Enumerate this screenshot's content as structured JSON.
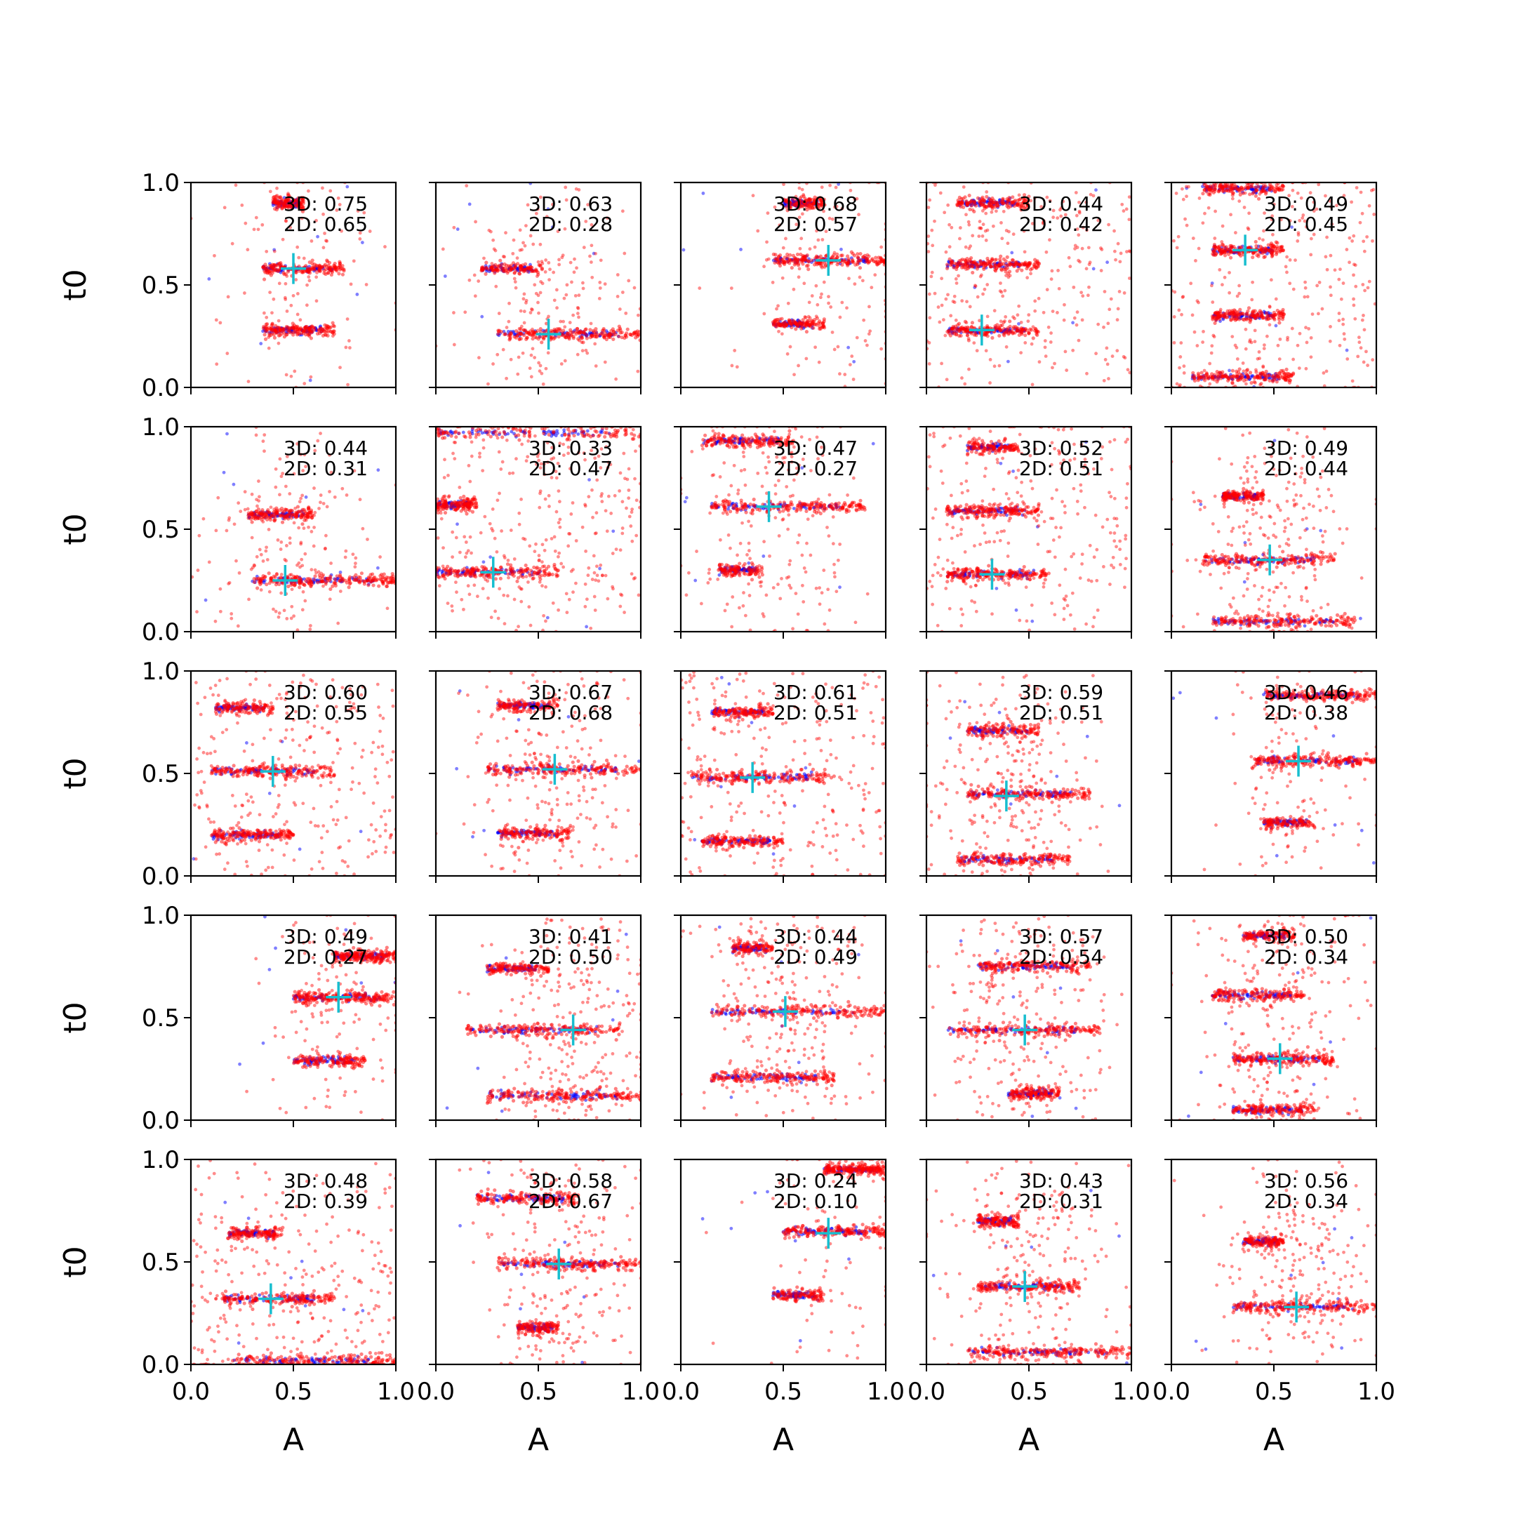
{
  "chart_data": {
    "type": "scatter",
    "rows": 5,
    "cols": 5,
    "xlabel": "A",
    "ylabel": "t0",
    "xlim": [
      0.0,
      1.0
    ],
    "ylim": [
      0.0,
      1.0
    ],
    "x_ticks": [
      "0.0",
      "0.5",
      "1.0"
    ],
    "y_ticks": [
      "0.0",
      "0.5",
      "1.0"
    ],
    "grid": false,
    "colors": {
      "samples_2d": "#ff0000",
      "samples_3d": "#0000ff",
      "truth": "#17becf",
      "frame": "#000000"
    },
    "panels": [
      {
        "row": 0,
        "col": 0,
        "label_3d": "3D: 0.75",
        "label_2d": "2D: 0.65",
        "truth": [
          0.5,
          0.58
        ],
        "bands": [
          {
            "t": 0.58,
            "a": [
              0.35,
              0.75
            ],
            "amp": 0.3
          },
          {
            "t": 0.28,
            "a": [
              0.35,
              0.7
            ],
            "amp": 0.3
          },
          {
            "t": 0.9,
            "a": [
              0.4,
              0.55
            ],
            "amp": 0.12
          }
        ],
        "scatter": 0.35
      },
      {
        "row": 0,
        "col": 1,
        "label_3d": "3D: 0.63",
        "label_2d": "2D: 0.28",
        "truth": [
          0.55,
          0.26
        ],
        "bands": [
          {
            "t": 0.26,
            "a": [
              0.3,
              1.0
            ],
            "amp": 0.45
          },
          {
            "t": 0.58,
            "a": [
              0.22,
              0.52
            ],
            "amp": 0.05
          }
        ],
        "scatter": 0.6
      },
      {
        "row": 0,
        "col": 2,
        "label_3d": "3D: 0.68",
        "label_2d": "2D: 0.57",
        "truth": [
          0.72,
          0.62
        ],
        "bands": [
          {
            "t": 0.62,
            "a": [
              0.45,
              1.0
            ],
            "amp": 0.45
          },
          {
            "t": 0.31,
            "a": [
              0.45,
              0.7
            ],
            "amp": 0.1
          },
          {
            "t": 0.9,
            "a": [
              0.5,
              0.7
            ],
            "amp": 0.08
          }
        ],
        "scatter": 0.45
      },
      {
        "row": 0,
        "col": 3,
        "label_3d": "3D: 0.44",
        "label_2d": "2D: 0.42",
        "truth": [
          0.27,
          0.28
        ],
        "bands": [
          {
            "t": 0.28,
            "a": [
              0.1,
              0.55
            ],
            "amp": 0.3
          },
          {
            "t": 0.6,
            "a": [
              0.1,
              0.55
            ],
            "amp": 0.3
          },
          {
            "t": 0.9,
            "a": [
              0.15,
              0.5
            ],
            "amp": 0.2
          }
        ],
        "scatter": 0.9
      },
      {
        "row": 0,
        "col": 4,
        "label_3d": "3D: 0.49",
        "label_2d": "2D: 0.45",
        "truth": [
          0.36,
          0.67
        ],
        "bands": [
          {
            "t": 0.67,
            "a": [
              0.2,
              0.55
            ],
            "amp": 0.25
          },
          {
            "t": 0.35,
            "a": [
              0.2,
              0.55
            ],
            "amp": 0.25
          },
          {
            "t": 0.05,
            "a": [
              0.1,
              0.6
            ],
            "amp": 0.3
          },
          {
            "t": 0.97,
            "a": [
              0.15,
              0.55
            ],
            "amp": 0.2
          }
        ],
        "scatter": 0.9
      },
      {
        "row": 1,
        "col": 0,
        "label_3d": "3D: 0.44",
        "label_2d": "2D: 0.31",
        "truth": [
          0.46,
          0.25
        ],
        "bands": [
          {
            "t": 0.25,
            "a": [
              0.3,
              1.0
            ],
            "amp": 0.45
          },
          {
            "t": 0.57,
            "a": [
              0.28,
              0.6
            ],
            "amp": 0.25
          }
        ],
        "scatter": 0.55
      },
      {
        "row": 1,
        "col": 1,
        "label_3d": "3D: 0.33",
        "label_2d": "2D: 0.47",
        "truth": [
          0.28,
          0.29
        ],
        "bands": [
          {
            "t": 0.29,
            "a": [
              0.0,
              0.6
            ],
            "amp": 0.35
          },
          {
            "t": 0.62,
            "a": [
              0.0,
              0.2
            ],
            "amp": 0.15
          },
          {
            "t": 0.97,
            "a": [
              0.0,
              1.0
            ],
            "amp": 0.1
          }
        ],
        "scatter": 1.0
      },
      {
        "row": 1,
        "col": 2,
        "label_3d": "3D: 0.47",
        "label_2d": "2D: 0.27",
        "truth": [
          0.43,
          0.61
        ],
        "bands": [
          {
            "t": 0.61,
            "a": [
              0.15,
              0.9
            ],
            "amp": 0.35
          },
          {
            "t": 0.93,
            "a": [
              0.1,
              0.55
            ],
            "amp": 0.25
          },
          {
            "t": 0.3,
            "a": [
              0.18,
              0.4
            ],
            "amp": 0.05
          }
        ],
        "scatter": 0.7
      },
      {
        "row": 1,
        "col": 3,
        "label_3d": "3D: 0.52",
        "label_2d": "2D: 0.51",
        "truth": [
          0.32,
          0.28
        ],
        "bands": [
          {
            "t": 0.28,
            "a": [
              0.1,
              0.6
            ],
            "amp": 0.35
          },
          {
            "t": 0.59,
            "a": [
              0.1,
              0.55
            ],
            "amp": 0.3
          },
          {
            "t": 0.9,
            "a": [
              0.2,
              0.45
            ],
            "amp": 0.1
          }
        ],
        "scatter": 0.85
      },
      {
        "row": 1,
        "col": 4,
        "label_3d": "3D: 0.49",
        "label_2d": "2D: 0.44",
        "truth": [
          0.48,
          0.35
        ],
        "bands": [
          {
            "t": 0.35,
            "a": [
              0.15,
              0.8
            ],
            "amp": 0.3
          },
          {
            "t": 0.66,
            "a": [
              0.25,
              0.45
            ],
            "amp": 0.15
          },
          {
            "t": 0.05,
            "a": [
              0.2,
              0.9
            ],
            "amp": 0.3
          }
        ],
        "scatter": 0.8
      },
      {
        "row": 2,
        "col": 0,
        "label_3d": "3D: 0.60",
        "label_2d": "2D: 0.55",
        "truth": [
          0.4,
          0.51
        ],
        "bands": [
          {
            "t": 0.51,
            "a": [
              0.1,
              0.7
            ],
            "amp": 0.35
          },
          {
            "t": 0.2,
            "a": [
              0.1,
              0.5
            ],
            "amp": 0.3
          },
          {
            "t": 0.82,
            "a": [
              0.12,
              0.4
            ],
            "amp": 0.1
          }
        ],
        "scatter": 0.85
      },
      {
        "row": 2,
        "col": 1,
        "label_3d": "3D: 0.67",
        "label_2d": "2D: 0.68",
        "truth": [
          0.58,
          0.52
        ],
        "bands": [
          {
            "t": 0.52,
            "a": [
              0.25,
              1.0
            ],
            "amp": 0.35
          },
          {
            "t": 0.21,
            "a": [
              0.3,
              0.65
            ],
            "amp": 0.15
          },
          {
            "t": 0.83,
            "a": [
              0.3,
              0.6
            ],
            "amp": 0.1
          }
        ],
        "scatter": 0.7
      },
      {
        "row": 2,
        "col": 2,
        "label_3d": "3D: 0.61",
        "label_2d": "2D: 0.51",
        "truth": [
          0.35,
          0.48
        ],
        "bands": [
          {
            "t": 0.48,
            "a": [
              0.05,
              0.75
            ],
            "amp": 0.35
          },
          {
            "t": 0.17,
            "a": [
              0.1,
              0.5
            ],
            "amp": 0.25
          },
          {
            "t": 0.8,
            "a": [
              0.15,
              0.45
            ],
            "amp": 0.15
          }
        ],
        "scatter": 0.85
      },
      {
        "row": 2,
        "col": 3,
        "label_3d": "3D: 0.59",
        "label_2d": "2D: 0.51",
        "truth": [
          0.39,
          0.39
        ],
        "bands": [
          {
            "t": 0.4,
            "a": [
              0.2,
              0.8
            ],
            "amp": 0.35
          },
          {
            "t": 0.08,
            "a": [
              0.15,
              0.7
            ],
            "amp": 0.3
          },
          {
            "t": 0.71,
            "a": [
              0.2,
              0.55
            ],
            "amp": 0.15
          }
        ],
        "scatter": 0.8
      },
      {
        "row": 2,
        "col": 4,
        "label_3d": "3D: 0.46",
        "label_2d": "2D: 0.38",
        "truth": [
          0.62,
          0.56
        ],
        "bands": [
          {
            "t": 0.56,
            "a": [
              0.4,
              1.0
            ],
            "amp": 0.4
          },
          {
            "t": 0.88,
            "a": [
              0.45,
              1.0
            ],
            "amp": 0.35
          },
          {
            "t": 0.26,
            "a": [
              0.45,
              0.7
            ],
            "amp": 0.08
          }
        ],
        "scatter": 0.4
      },
      {
        "row": 3,
        "col": 0,
        "label_3d": "3D: 0.49",
        "label_2d": "2D: 0.27",
        "truth": [
          0.72,
          0.6
        ],
        "bands": [
          {
            "t": 0.6,
            "a": [
              0.5,
              1.0
            ],
            "amp": 0.45
          },
          {
            "t": 0.29,
            "a": [
              0.5,
              0.85
            ],
            "amp": 0.2
          },
          {
            "t": 0.8,
            "a": [
              0.7,
              1.0
            ],
            "amp": 0.4
          }
        ],
        "scatter": 0.4
      },
      {
        "row": 3,
        "col": 1,
        "label_3d": "3D: 0.41",
        "label_2d": "2D: 0.50",
        "truth": [
          0.67,
          0.44
        ],
        "bands": [
          {
            "t": 0.44,
            "a": [
              0.15,
              0.9
            ],
            "amp": 0.35
          },
          {
            "t": 0.12,
            "a": [
              0.25,
              1.0
            ],
            "amp": 0.35
          },
          {
            "t": 0.74,
            "a": [
              0.25,
              0.55
            ],
            "amp": 0.15
          }
        ],
        "scatter": 0.8
      },
      {
        "row": 3,
        "col": 2,
        "label_3d": "3D: 0.44",
        "label_2d": "2D: 0.49",
        "truth": [
          0.51,
          0.53
        ],
        "bands": [
          {
            "t": 0.53,
            "a": [
              0.15,
              1.0
            ],
            "amp": 0.35
          },
          {
            "t": 0.21,
            "a": [
              0.15,
              0.75
            ],
            "amp": 0.3
          },
          {
            "t": 0.84,
            "a": [
              0.25,
              0.45
            ],
            "amp": 0.05
          }
        ],
        "scatter": 0.8
      },
      {
        "row": 3,
        "col": 3,
        "label_3d": "3D: 0.57",
        "label_2d": "2D: 0.54",
        "truth": [
          0.48,
          0.44
        ],
        "bands": [
          {
            "t": 0.44,
            "a": [
              0.1,
              0.85
            ],
            "amp": 0.35
          },
          {
            "t": 0.75,
            "a": [
              0.25,
              0.8
            ],
            "amp": 0.3
          },
          {
            "t": 0.13,
            "a": [
              0.4,
              0.65
            ],
            "amp": 0.15
          }
        ],
        "scatter": 0.8
      },
      {
        "row": 3,
        "col": 4,
        "label_3d": "3D: 0.50",
        "label_2d": "2D: 0.34",
        "truth": [
          0.53,
          0.3
        ],
        "bands": [
          {
            "t": 0.3,
            "a": [
              0.3,
              0.8
            ],
            "amp": 0.35
          },
          {
            "t": 0.61,
            "a": [
              0.2,
              0.65
            ],
            "amp": 0.25
          },
          {
            "t": 0.05,
            "a": [
              0.3,
              0.7
            ],
            "amp": 0.2
          },
          {
            "t": 0.9,
            "a": [
              0.35,
              0.6
            ],
            "amp": 0.1
          }
        ],
        "scatter": 0.75
      },
      {
        "row": 4,
        "col": 0,
        "label_3d": "3D: 0.48",
        "label_2d": "2D: 0.39",
        "truth": [
          0.39,
          0.32
        ],
        "bands": [
          {
            "t": 0.32,
            "a": [
              0.15,
              0.7
            ],
            "amp": 0.3
          },
          {
            "t": 0.64,
            "a": [
              0.18,
              0.45
            ],
            "amp": 0.15
          },
          {
            "t": 0.02,
            "a": [
              0.2,
              1.0
            ],
            "amp": 0.3
          }
        ],
        "scatter": 0.9
      },
      {
        "row": 4,
        "col": 1,
        "label_3d": "3D: 0.58",
        "label_2d": "2D: 0.67",
        "truth": [
          0.6,
          0.49
        ],
        "bands": [
          {
            "t": 0.49,
            "a": [
              0.3,
              1.0
            ],
            "amp": 0.4
          },
          {
            "t": 0.81,
            "a": [
              0.2,
              0.7
            ],
            "amp": 0.25
          },
          {
            "t": 0.18,
            "a": [
              0.4,
              0.6
            ],
            "amp": 0.1
          }
        ],
        "scatter": 0.7
      },
      {
        "row": 4,
        "col": 2,
        "label_3d": "3D: 0.24",
        "label_2d": "2D: 0.10",
        "truth": [
          0.72,
          0.64
        ],
        "bands": [
          {
            "t": 0.65,
            "a": [
              0.5,
              1.0
            ],
            "amp": 0.3
          },
          {
            "t": 0.34,
            "a": [
              0.45,
              0.7
            ],
            "amp": 0.05
          },
          {
            "t": 0.95,
            "a": [
              0.7,
              1.0
            ],
            "amp": 0.45
          }
        ],
        "scatter": 0.25
      },
      {
        "row": 4,
        "col": 3,
        "label_3d": "3D: 0.43",
        "label_2d": "2D: 0.31",
        "truth": [
          0.48,
          0.38
        ],
        "bands": [
          {
            "t": 0.38,
            "a": [
              0.25,
              0.75
            ],
            "amp": 0.3
          },
          {
            "t": 0.06,
            "a": [
              0.2,
              1.0
            ],
            "amp": 0.4
          },
          {
            "t": 0.7,
            "a": [
              0.25,
              0.45
            ],
            "amp": 0.15
          }
        ],
        "scatter": 0.75
      },
      {
        "row": 4,
        "col": 4,
        "label_3d": "3D: 0.56",
        "label_2d": "2D: 0.34",
        "truth": [
          0.61,
          0.28
        ],
        "bands": [
          {
            "t": 0.28,
            "a": [
              0.3,
              1.0
            ],
            "amp": 0.4
          },
          {
            "t": 0.6,
            "a": [
              0.35,
              0.55
            ],
            "amp": 0.1
          }
        ],
        "scatter": 0.7
      }
    ]
  }
}
